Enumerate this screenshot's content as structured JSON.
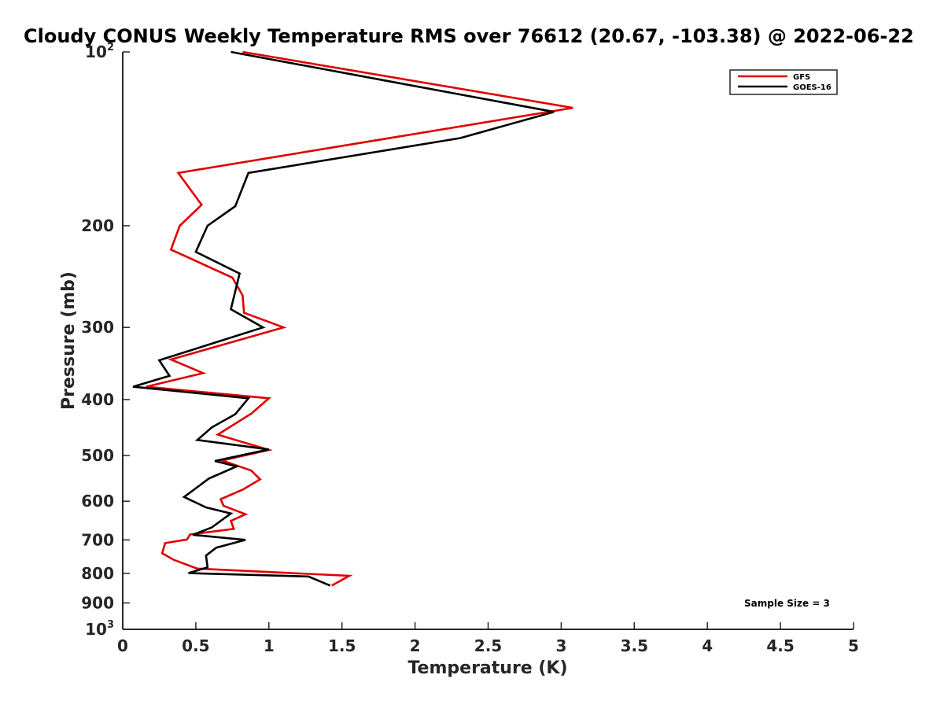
{
  "chart_data": {
    "type": "line",
    "title": "Cloudy CONUS Weekly Temperature RMS over 76612 (20.67, -103.38) @ 2022-06-22",
    "xlabel": "Temperature (K)",
    "ylabel": "Pressure (mb)",
    "xlim": [
      0,
      5
    ],
    "ylim": [
      100,
      1000
    ],
    "yscale": "log",
    "yreversed": true,
    "x_ticks": [
      0,
      0.5,
      1,
      1.5,
      2,
      2.5,
      3,
      3.5,
      4,
      4.5,
      5
    ],
    "x_tick_labels": [
      "0",
      "0.5",
      "1",
      "1.5",
      "2",
      "2.5",
      "3",
      "3.5",
      "4",
      "4.5",
      "5"
    ],
    "y_ticks": [
      {
        "value": 100,
        "label": "10",
        "sup": "2"
      },
      {
        "value": 200,
        "label": "200",
        "sup": ""
      },
      {
        "value": 300,
        "label": "300",
        "sup": ""
      },
      {
        "value": 400,
        "label": "400",
        "sup": ""
      },
      {
        "value": 500,
        "label": "500",
        "sup": ""
      },
      {
        "value": 600,
        "label": "600",
        "sup": ""
      },
      {
        "value": 700,
        "label": "700",
        "sup": ""
      },
      {
        "value": 800,
        "label": "800",
        "sup": ""
      },
      {
        "value": 900,
        "label": "900",
        "sup": ""
      },
      {
        "value": 1000,
        "label": "10",
        "sup": "3"
      }
    ],
    "legend_position": "top-right",
    "annotation": "Sample Size = 3",
    "series": [
      {
        "name": "GFS",
        "color": "#e00000",
        "points": [
          [
            0.82,
            100
          ],
          [
            3.08,
            125
          ],
          [
            0.38,
            162
          ],
          [
            0.54,
            184
          ],
          [
            0.39,
            200
          ],
          [
            0.33,
            220
          ],
          [
            0.75,
            246
          ],
          [
            0.82,
            264
          ],
          [
            0.83,
            283
          ],
          [
            1.1,
            300
          ],
          [
            0.33,
            341
          ],
          [
            0.55,
            360
          ],
          [
            0.16,
            380
          ],
          [
            1.0,
            398
          ],
          [
            0.88,
            423
          ],
          [
            0.65,
            460
          ],
          [
            1.0,
            489
          ],
          [
            0.68,
            510
          ],
          [
            0.88,
            531
          ],
          [
            0.94,
            550
          ],
          [
            0.82,
            573
          ],
          [
            0.67,
            595
          ],
          [
            0.69,
            611
          ],
          [
            0.84,
            632
          ],
          [
            0.74,
            649
          ],
          [
            0.76,
            670
          ],
          [
            0.46,
            685
          ],
          [
            0.44,
            699
          ],
          [
            0.29,
            709
          ],
          [
            0.27,
            738
          ],
          [
            0.35,
            758
          ],
          [
            0.51,
            785
          ],
          [
            1.55,
            808
          ],
          [
            1.43,
            840
          ]
        ]
      },
      {
        "name": "GOES-16",
        "color": "#000000",
        "points": [
          [
            0.74,
            100
          ],
          [
            2.95,
            127
          ],
          [
            2.31,
            141
          ],
          [
            0.86,
            162
          ],
          [
            0.77,
            185
          ],
          [
            0.58,
            200
          ],
          [
            0.5,
            222
          ],
          [
            0.8,
            242
          ],
          [
            0.76,
            266
          ],
          [
            0.74,
            279
          ],
          [
            0.96,
            300
          ],
          [
            0.25,
            342
          ],
          [
            0.32,
            364
          ],
          [
            0.07,
            380
          ],
          [
            0.86,
            398
          ],
          [
            0.77,
            424
          ],
          [
            0.61,
            447
          ],
          [
            0.51,
            470
          ],
          [
            1.0,
            488
          ],
          [
            0.63,
            511
          ],
          [
            0.78,
            522
          ],
          [
            0.59,
            548
          ],
          [
            0.42,
            590
          ],
          [
            0.57,
            615
          ],
          [
            0.74,
            630
          ],
          [
            0.61,
            666
          ],
          [
            0.48,
            686
          ],
          [
            0.84,
            700
          ],
          [
            0.64,
            722
          ],
          [
            0.57,
            745
          ],
          [
            0.58,
            781
          ],
          [
            0.45,
            799
          ],
          [
            1.27,
            810
          ],
          [
            1.42,
            840
          ]
        ]
      }
    ]
  }
}
